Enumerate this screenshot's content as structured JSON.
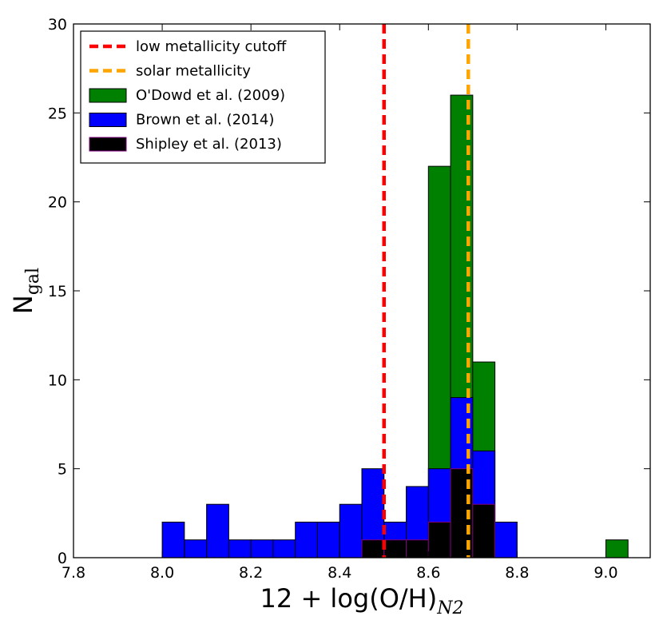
{
  "chart_data": {
    "type": "bar",
    "subtype": "stacked-histogram",
    "title": "",
    "xlabel_main": "12 + log(O/H)",
    "xlabel_sub": "N2",
    "ylabel_main": "N",
    "ylabel_sub": "gal",
    "xlim": [
      7.8,
      9.1
    ],
    "ylim": [
      0,
      30
    ],
    "xticks": [
      7.8,
      8.0,
      8.2,
      8.4,
      8.6,
      8.8,
      9.0
    ],
    "xtick_labels": [
      "7.8",
      "8.0",
      "8.2",
      "8.4",
      "8.6",
      "8.8",
      "9.0"
    ],
    "yticks": [
      0,
      5,
      10,
      15,
      20,
      25,
      30
    ],
    "ytick_labels": [
      "0",
      "5",
      "10",
      "15",
      "20",
      "25",
      "30"
    ],
    "bin_width": 0.05,
    "bins": [
      8.0,
      8.05,
      8.1,
      8.15,
      8.2,
      8.25,
      8.3,
      8.35,
      8.4,
      8.45,
      8.5,
      8.55,
      8.6,
      8.65,
      8.7,
      8.75,
      9.0
    ],
    "series": [
      {
        "name": "O'Dowd et al. (2009)",
        "color": "#008000",
        "values": [
          0,
          0,
          0,
          0,
          0,
          0,
          0,
          0,
          0,
          0,
          0,
          0,
          22,
          26,
          11,
          0,
          1
        ]
      },
      {
        "name": "Brown et al. (2014)",
        "color": "#0000ff",
        "values": [
          2,
          1,
          3,
          1,
          1,
          1,
          2,
          2,
          3,
          5,
          2,
          4,
          5,
          9,
          6,
          2,
          0
        ]
      },
      {
        "name": "Shipley et al. (2013)",
        "color": "#000000",
        "edge_color": "#800080",
        "values": [
          0,
          0,
          0,
          0,
          0,
          0,
          0,
          0,
          0,
          1,
          1,
          1,
          2,
          5,
          3,
          0,
          0
        ]
      }
    ],
    "reference_lines": [
      {
        "name": "low metallicity cutoff",
        "x": 8.5,
        "color": "#ff0000",
        "style": "dashed"
      },
      {
        "name": "solar metallicity",
        "x": 8.69,
        "color": "#ffa500",
        "style": "dashed"
      }
    ],
    "legend": {
      "position": "top-left",
      "entries": [
        {
          "label": "low metallicity cutoff",
          "kind": "line",
          "color": "#ff0000"
        },
        {
          "label": "solar metallicity",
          "kind": "line",
          "color": "#ffa500"
        },
        {
          "label": "O'Dowd et al. (2009)",
          "kind": "patch",
          "color": "#008000"
        },
        {
          "label": "Brown et al. (2014)",
          "kind": "patch",
          "color": "#0000ff"
        },
        {
          "label": "Shipley et al. (2013)",
          "kind": "patch",
          "color": "#000000"
        }
      ]
    }
  }
}
